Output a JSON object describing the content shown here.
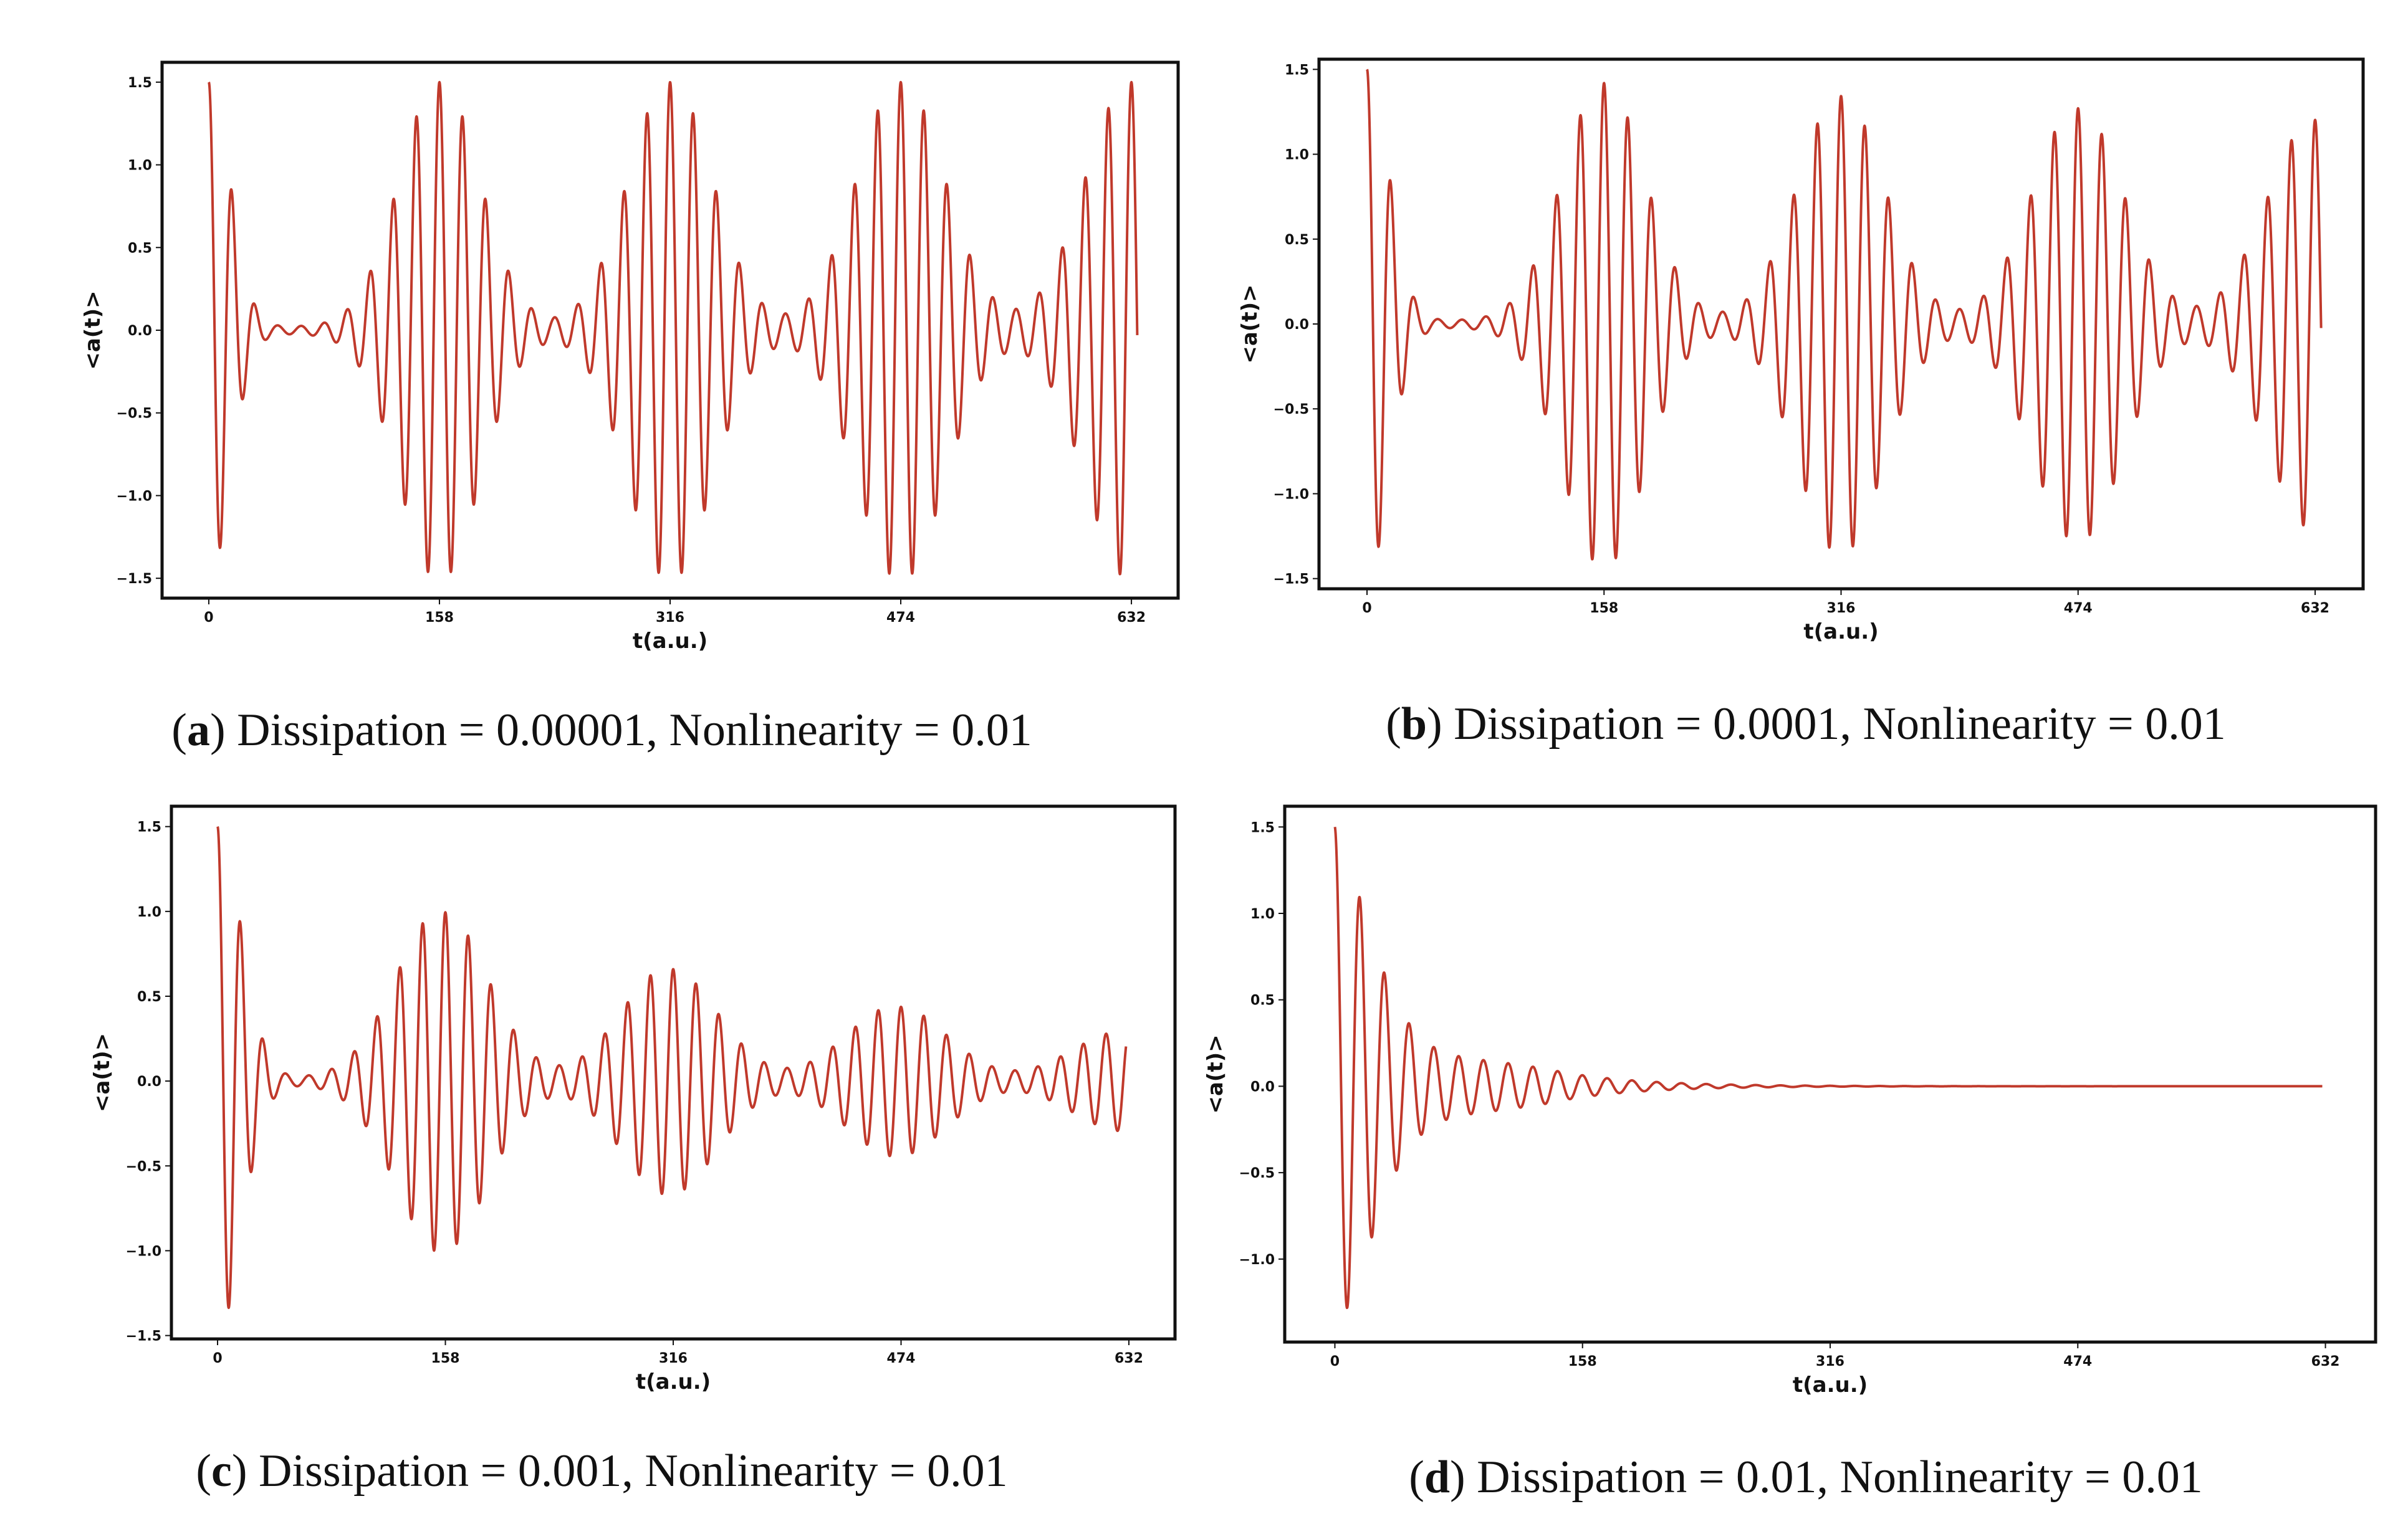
{
  "chart_data": [
    {
      "type": "line",
      "panel_id": "a",
      "caption_letter": "a",
      "caption_text": "Dissipation = 0.00001, Nonlinearity = 0.01",
      "xlabel": "t(a.u.)",
      "ylabel": "<a(t)>",
      "xticks": [
        0,
        158,
        316,
        474,
        632
      ],
      "yticks": [
        1.5,
        1.0,
        0.5,
        0.0,
        -0.5,
        -1.0,
        -1.5
      ],
      "xlim": [
        -32,
        664
      ],
      "ylim": [
        -1.62,
        1.62
      ],
      "color": "#c0392b",
      "signal": {
        "amplitude": 1.5,
        "envelope_decay": 0.12,
        "carrier_period": 15.8,
        "revival_period": 158,
        "revival_width": 26,
        "damping": 0.0,
        "x_end": 636
      }
    },
    {
      "type": "line",
      "panel_id": "b",
      "caption_letter": "b",
      "caption_text": "Dissipation = 0.0001, Nonlinearity = 0.01",
      "xlabel": "t(a.u.)",
      "ylabel": "<a(t)>",
      "xticks": [
        0,
        158,
        316,
        474,
        632
      ],
      "yticks": [
        1.5,
        1.0,
        0.5,
        0.0,
        -0.5,
        -1.0,
        -1.5
      ],
      "xlim": [
        -32,
        664
      ],
      "ylim": [
        -1.56,
        1.56
      ],
      "color": "#c0392b",
      "signal": {
        "amplitude": 1.5,
        "envelope_decay": 0.12,
        "carrier_period": 15.8,
        "revival_period": 158,
        "revival_width": 26,
        "damping": 0.00035,
        "x_end": 636
      }
    },
    {
      "type": "line",
      "panel_id": "c",
      "caption_letter": "c",
      "caption_text": "Dissipation = 0.001, Nonlinearity = 0.01",
      "xlabel": "t(a.u.)",
      "ylabel": "<a(t)>",
      "xticks": [
        0,
        158,
        316,
        474,
        632
      ],
      "yticks": [
        1.5,
        1.0,
        0.5,
        0.0,
        -0.5,
        -1.0,
        -1.5
      ],
      "xlim": [
        -32,
        664
      ],
      "ylim": [
        -1.52,
        1.62
      ],
      "color": "#c0392b",
      "signal": {
        "amplitude": 1.5,
        "envelope_decay": 0.12,
        "carrier_period": 15.8,
        "revival_period": 158,
        "revival_width": 30,
        "damping": 0.0026,
        "x_end": 630
      }
    },
    {
      "type": "line",
      "panel_id": "d",
      "caption_letter": "d",
      "caption_text": "Dissipation = 0.01, Nonlinearity = 0.01",
      "xlabel": "t(a.u.)",
      "ylabel": "<a(t)>",
      "xticks": [
        0,
        158,
        316,
        474,
        632
      ],
      "yticks": [
        1.5,
        1.0,
        0.5,
        0.0,
        -0.5,
        -1.0
      ],
      "xlim": [
        -32,
        664
      ],
      "ylim": [
        -1.48,
        1.62
      ],
      "color": "#c0392b",
      "signal": {
        "amplitude": 1.5,
        "envelope_decay": 0.12,
        "carrier_period": 15.8,
        "revival_period": 158,
        "revival_width": 60,
        "damping": 0.02,
        "x_end": 630
      }
    }
  ]
}
